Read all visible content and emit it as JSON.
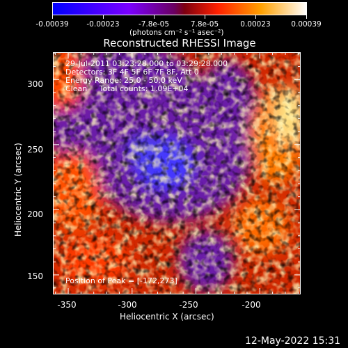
{
  "colorbar": {
    "ticks": [
      "-0.00039",
      "-0.00023",
      "-7.8e-05",
      "7.8e-05",
      "0.00023",
      "0.00039"
    ],
    "units": "(photons cm⁻² s⁻¹ asec⁻²)",
    "colors": [
      "#0000ff",
      "#7a00ff",
      "#7d0040",
      "#ff3300",
      "#ffa000",
      "#ffffff"
    ]
  },
  "chart_data": {
    "type": "heatmap",
    "title": "Reconstructed RHESSI Image",
    "xlabel": "Heliocentric X (arcsec)",
    "ylabel": "Heliocentric Y (arcsec)",
    "xlim": [
      -362,
      -168
    ],
    "ylim": [
      135,
      321
    ],
    "xticks": [
      -350,
      -300,
      -250,
      -200
    ],
    "yticks": [
      150,
      200,
      250,
      300
    ],
    "value_range": [
      -0.00039,
      0.00039
    ],
    "peak": [
      -172,
      273
    ]
  },
  "annotations": {
    "time": "29-Jul-2011 03:23:28.000 to 03:29:28.000",
    "detectors": "Detectors: 3F 4F 5F 6F 7F 8F, Att 0",
    "energy": "Energy Range: 25.0 - 50.0 keV",
    "clean": "Clean     Total counts: 1.09E+04",
    "peak": "Position of Peak = [-172,273]"
  },
  "footer": {
    "date": "12-May-2022 15:31"
  }
}
